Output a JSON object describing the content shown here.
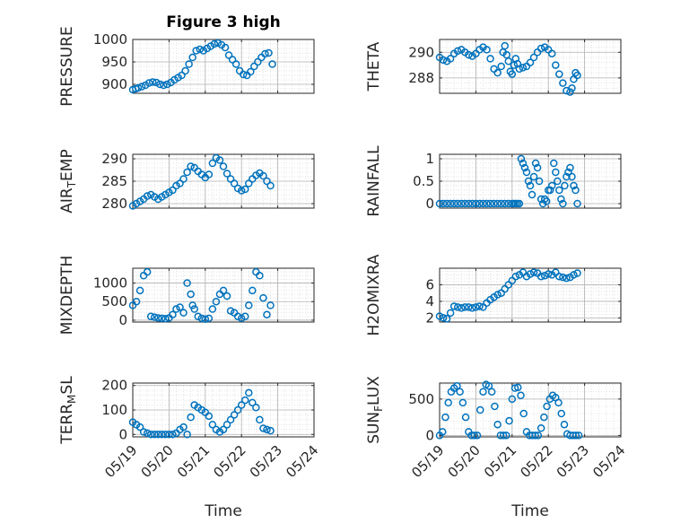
{
  "figure": {
    "title": "Figure 3 high"
  },
  "colors": {
    "marker": "#0072bd",
    "axis": "#262626",
    "grid": "#b0b0b0",
    "minor_grid": "#d8d8d8"
  },
  "chart_data": [
    {
      "type": "scatter",
      "id": "pressure",
      "title": "Figure 3 high",
      "ylabel": "PRESSURE",
      "ylabel_main": "PRESSURE",
      "ylabel_sub": "",
      "ylabel_rest": "",
      "xlim": [
        0,
        5
      ],
      "ylim": [
        880,
        1000
      ],
      "yticks": [
        900,
        950,
        1000
      ],
      "xlabel": "",
      "x": [
        0,
        0.08,
        0.15,
        0.25,
        0.35,
        0.45,
        0.55,
        0.65,
        0.75,
        0.85,
        0.95,
        1.05,
        1.15,
        1.25,
        1.35,
        1.45,
        1.55,
        1.65,
        1.75,
        1.85,
        1.95,
        2.05,
        2.15,
        2.25,
        2.35,
        2.45,
        2.55,
        2.65,
        2.75,
        2.85,
        2.95,
        3.05,
        3.15,
        3.25,
        3.35,
        3.45,
        3.55,
        3.65,
        3.75,
        3.85
      ],
      "y": [
        888,
        890,
        892,
        895,
        898,
        903,
        905,
        904,
        900,
        898,
        900,
        904,
        910,
        915,
        920,
        930,
        945,
        960,
        975,
        978,
        975,
        980,
        985,
        990,
        992,
        988,
        982,
        965,
        955,
        945,
        930,
        922,
        920,
        928,
        940,
        950,
        960,
        968,
        970,
        945
      ]
    },
    {
      "type": "scatter",
      "id": "theta",
      "ylabel": "THETA",
      "ylabel_main": "THETA",
      "ylabel_sub": "",
      "ylabel_rest": "",
      "xlim": [
        0,
        5
      ],
      "ylim": [
        286.8,
        291.0
      ],
      "yticks": [
        288,
        290
      ],
      "xlabel": "",
      "x": [
        0,
        0.1,
        0.2,
        0.3,
        0.4,
        0.5,
        0.6,
        0.7,
        0.8,
        0.9,
        1.0,
        1.1,
        1.2,
        1.3,
        1.4,
        1.5,
        1.6,
        1.7,
        1.75,
        1.8,
        1.85,
        1.9,
        1.95,
        2.0,
        2.05,
        2.1,
        2.15,
        2.2,
        2.3,
        2.4,
        2.5,
        2.6,
        2.7,
        2.8,
        2.9,
        3.0,
        3.1,
        3.2,
        3.3,
        3.4,
        3.5,
        3.6,
        3.65,
        3.7,
        3.75,
        3.8
      ],
      "y": [
        289.6,
        289.4,
        289.3,
        289.5,
        289.9,
        290.1,
        290.2,
        290.0,
        289.8,
        289.7,
        289.9,
        290.2,
        290.4,
        290.2,
        289.5,
        288.7,
        288.4,
        288.9,
        290.0,
        290.5,
        289.8,
        289.3,
        288.5,
        288.3,
        289.0,
        289.5,
        289.1,
        288.7,
        288.8,
        288.9,
        289.2,
        289.6,
        290.0,
        290.3,
        290.4,
        290.2,
        289.9,
        289.0,
        288.3,
        287.6,
        287.0,
        286.9,
        287.2,
        287.9,
        288.4,
        288.2
      ]
    },
    {
      "type": "scatter",
      "id": "air_temp",
      "ylabel": "AIR_TEMP",
      "ylabel_main": "AIR",
      "ylabel_sub": "T",
      "ylabel_rest": "EMP",
      "xlim": [
        0,
        5
      ],
      "ylim": [
        279,
        291
      ],
      "yticks": [
        280,
        285,
        290
      ],
      "xlabel": "",
      "x": [
        0,
        0.1,
        0.2,
        0.3,
        0.4,
        0.5,
        0.6,
        0.7,
        0.8,
        0.9,
        1.0,
        1.1,
        1.2,
        1.3,
        1.4,
        1.5,
        1.6,
        1.7,
        1.8,
        1.9,
        2.0,
        2.1,
        2.2,
        2.3,
        2.4,
        2.5,
        2.6,
        2.7,
        2.8,
        2.9,
        3.0,
        3.1,
        3.2,
        3.3,
        3.4,
        3.5,
        3.6,
        3.7,
        3.8
      ],
      "y": [
        279.5,
        280.0,
        280.5,
        281.0,
        281.7,
        282.0,
        281.5,
        281.0,
        281.5,
        282.0,
        282.5,
        283.0,
        284.0,
        284.5,
        285.5,
        287.0,
        288.3,
        288.0,
        287.2,
        286.5,
        285.8,
        286.5,
        289.0,
        290.2,
        289.7,
        288.3,
        286.7,
        285.5,
        284.5,
        283.4,
        282.9,
        283.2,
        284.5,
        285.5,
        286.3,
        286.8,
        286.2,
        285.0,
        284.0
      ]
    },
    {
      "type": "scatter",
      "id": "rainfall",
      "ylabel": "RAINFALL",
      "ylabel_main": "RAINFALL",
      "ylabel_sub": "",
      "ylabel_rest": "",
      "xlim": [
        0,
        5
      ],
      "ylim": [
        -0.1,
        1.1
      ],
      "yticks": [
        0,
        0.5,
        1
      ],
      "xlabel": "",
      "x": [
        0,
        0.1,
        0.2,
        0.3,
        0.4,
        0.5,
        0.6,
        0.7,
        0.8,
        0.9,
        1.0,
        1.1,
        1.2,
        1.3,
        1.4,
        1.5,
        1.6,
        1.7,
        1.8,
        1.9,
        2.0,
        2.05,
        2.1,
        2.15,
        2.2,
        2.25,
        2.3,
        2.35,
        2.4,
        2.45,
        2.5,
        2.55,
        2.6,
        2.65,
        2.7,
        2.75,
        2.8,
        2.85,
        2.9,
        2.95,
        3.0,
        3.05,
        3.1,
        3.15,
        3.2,
        3.25,
        3.3,
        3.35,
        3.4,
        3.45,
        3.5,
        3.55,
        3.6,
        3.65,
        3.7,
        3.75,
        3.8
      ],
      "y": [
        0,
        0,
        0,
        0,
        0,
        0,
        0,
        0,
        0,
        0,
        0,
        0,
        0,
        0,
        0,
        0,
        0,
        0,
        0,
        0,
        0,
        0,
        0,
        0,
        0,
        1.0,
        0.9,
        0.8,
        0.7,
        0.5,
        0.4,
        0.2,
        0.6,
        0.9,
        0.8,
        0.5,
        0.1,
        0,
        0.1,
        0.05,
        0.3,
        0.3,
        0.4,
        0.9,
        0.7,
        0.5,
        0.3,
        0.1,
        0,
        0.4,
        0.6,
        0.7,
        0.8,
        0.6,
        0.4,
        0.3,
        0
      ]
    },
    {
      "type": "scatter",
      "id": "mixdepth",
      "ylabel": "MIXDEPTH",
      "ylabel_main": "MIXDEPTH",
      "ylabel_sub": "",
      "ylabel_rest": "",
      "xlim": [
        0,
        5
      ],
      "ylim": [
        -50,
        1400
      ],
      "yticks": [
        0,
        500,
        1000
      ],
      "xlabel": "",
      "x": [
        0,
        0.1,
        0.2,
        0.3,
        0.4,
        0.5,
        0.6,
        0.7,
        0.8,
        0.9,
        1.0,
        1.1,
        1.2,
        1.3,
        1.4,
        1.5,
        1.6,
        1.65,
        1.7,
        1.8,
        1.9,
        2.0,
        2.1,
        2.2,
        2.3,
        2.4,
        2.5,
        2.6,
        2.7,
        2.8,
        2.9,
        3.0,
        3.1,
        3.2,
        3.3,
        3.4,
        3.5,
        3.6,
        3.7,
        3.8
      ],
      "y": [
        400,
        500,
        800,
        1200,
        1300,
        100,
        80,
        60,
        50,
        40,
        60,
        150,
        300,
        350,
        200,
        1000,
        700,
        400,
        300,
        100,
        50,
        30,
        50,
        300,
        500,
        700,
        800,
        650,
        250,
        200,
        100,
        50,
        100,
        400,
        800,
        1300,
        1200,
        600,
        150,
        400
      ]
    },
    {
      "type": "scatter",
      "id": "h2omixra",
      "ylabel": "H2OMIXRA",
      "ylabel_main": "H2OMIXRA",
      "ylabel_sub": "",
      "ylabel_rest": "",
      "xlim": [
        0,
        5
      ],
      "ylim": [
        1.5,
        8.0
      ],
      "yticks": [
        2,
        4,
        6
      ],
      "xlabel": "",
      "x": [
        0,
        0.1,
        0.2,
        0.3,
        0.4,
        0.5,
        0.6,
        0.7,
        0.8,
        0.9,
        1.0,
        1.1,
        1.2,
        1.3,
        1.4,
        1.5,
        1.6,
        1.7,
        1.8,
        1.9,
        2.0,
        2.1,
        2.2,
        2.3,
        2.4,
        2.5,
        2.6,
        2.7,
        2.8,
        2.9,
        3.0,
        3.1,
        3.2,
        3.3,
        3.4,
        3.5,
        3.6,
        3.7,
        3.8
      ],
      "y": [
        2.2,
        2.0,
        1.9,
        2.6,
        3.4,
        3.3,
        3.2,
        3.3,
        3.3,
        3.2,
        3.3,
        3.4,
        3.3,
        3.8,
        4.2,
        4.5,
        4.8,
        5.0,
        5.5,
        6.0,
        6.5,
        7.0,
        7.2,
        7.5,
        7.0,
        7.3,
        7.5,
        7.4,
        7.0,
        7.1,
        7.3,
        7.2,
        7.5,
        7.0,
        6.9,
        6.8,
        6.9,
        7.2,
        7.4
      ]
    },
    {
      "type": "scatter",
      "id": "terr_msl",
      "ylabel": "TERR_MSL",
      "ylabel_main": "TERR",
      "ylabel_sub": "M",
      "ylabel_rest": "SL",
      "xlim": [
        0,
        5
      ],
      "ylim": [
        -10,
        210
      ],
      "yticks": [
        0,
        100,
        200
      ],
      "xlabel": "Time",
      "xticklabels": [
        "05/19",
        "05/20",
        "05/21",
        "05/22",
        "05/23",
        "05/24"
      ],
      "xticks": [
        0,
        1,
        2,
        3,
        4,
        5
      ],
      "x": [
        0,
        0.1,
        0.2,
        0.3,
        0.4,
        0.5,
        0.6,
        0.7,
        0.8,
        0.9,
        1.0,
        1.1,
        1.2,
        1.3,
        1.4,
        1.5,
        1.6,
        1.7,
        1.8,
        1.9,
        2.0,
        2.1,
        2.2,
        2.3,
        2.4,
        2.5,
        2.6,
        2.7,
        2.8,
        2.9,
        3.0,
        3.1,
        3.2,
        3.3,
        3.4,
        3.5,
        3.6,
        3.7,
        3.8
      ],
      "y": [
        50,
        40,
        30,
        10,
        5,
        0,
        0,
        0,
        0,
        0,
        0,
        0,
        5,
        20,
        30,
        0,
        70,
        120,
        110,
        100,
        90,
        75,
        40,
        20,
        10,
        20,
        40,
        60,
        80,
        100,
        120,
        140,
        170,
        130,
        110,
        60,
        25,
        20,
        15
      ]
    },
    {
      "type": "scatter",
      "id": "sun_flux",
      "ylabel": "SUN_FLUX",
      "ylabel_main": "SUN",
      "ylabel_sub": "F",
      "ylabel_rest": "LUX",
      "xlim": [
        0,
        5
      ],
      "ylim": [
        -20,
        720
      ],
      "yticks": [
        0,
        500
      ],
      "xlabel": "Time",
      "xticklabels": [
        "05/19",
        "05/20",
        "05/21",
        "05/22",
        "05/23",
        "05/24"
      ],
      "xticks": [
        0,
        1,
        2,
        3,
        4,
        5
      ],
      "x": [
        0,
        0.08,
        0.16,
        0.24,
        0.32,
        0.4,
        0.48,
        0.56,
        0.64,
        0.72,
        0.8,
        0.88,
        0.96,
        1.04,
        1.12,
        1.2,
        1.28,
        1.36,
        1.44,
        1.52,
        1.6,
        1.68,
        1.76,
        1.84,
        1.92,
        2.0,
        2.08,
        2.16,
        2.24,
        2.32,
        2.4,
        2.48,
        2.56,
        2.64,
        2.72,
        2.8,
        2.88,
        2.96,
        3.04,
        3.12,
        3.2,
        3.28,
        3.36,
        3.44,
        3.52,
        3.6,
        3.68,
        3.76,
        3.84
      ],
      "y": [
        0,
        50,
        250,
        450,
        600,
        650,
        680,
        600,
        450,
        250,
        50,
        0,
        0,
        0,
        350,
        600,
        700,
        680,
        600,
        400,
        150,
        0,
        0,
        0,
        200,
        500,
        650,
        660,
        550,
        300,
        50,
        0,
        0,
        0,
        0,
        100,
        250,
        400,
        500,
        550,
        520,
        450,
        300,
        150,
        20,
        0,
        0,
        0,
        0
      ]
    }
  ]
}
